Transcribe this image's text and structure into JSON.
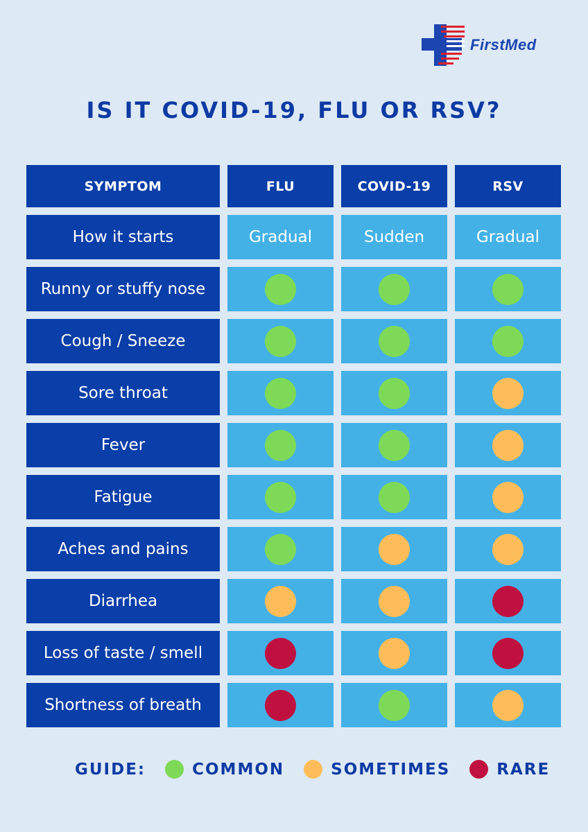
{
  "brand": {
    "name": "FirstMed",
    "logo_icon": "cross-logo-icon"
  },
  "title": "IS IT COVID-19, FLU OR RSV?",
  "colors": {
    "common": "#7ed957",
    "sometimes": "#ffbd59",
    "rare": "#c0103f",
    "header_bg": "#0a3ea8",
    "cell_bg": "#44b1e6",
    "page_bg": "#dde9f5"
  },
  "table": {
    "headers": [
      "SYMPTOM",
      "FLU",
      "COVID-19",
      "RSV"
    ],
    "rows": [
      {
        "symptom": "How it starts",
        "flu": "Gradual",
        "covid": "Sudden",
        "rsv": "Gradual"
      },
      {
        "symptom": "Runny or stuffy nose",
        "flu": "common",
        "covid": "common",
        "rsv": "common"
      },
      {
        "symptom": "Cough / Sneeze",
        "flu": "common",
        "covid": "common",
        "rsv": "common"
      },
      {
        "symptom": "Sore throat",
        "flu": "common",
        "covid": "common",
        "rsv": "sometimes"
      },
      {
        "symptom": "Fever",
        "flu": "common",
        "covid": "common",
        "rsv": "sometimes"
      },
      {
        "symptom": "Fatigue",
        "flu": "common",
        "covid": "common",
        "rsv": "sometimes"
      },
      {
        "symptom": "Aches and pains",
        "flu": "common",
        "covid": "sometimes",
        "rsv": "sometimes"
      },
      {
        "symptom": "Diarrhea",
        "flu": "sometimes",
        "covid": "sometimes",
        "rsv": "rare"
      },
      {
        "symptom": "Loss of taste / smell",
        "flu": "rare",
        "covid": "sometimes",
        "rsv": "rare"
      },
      {
        "symptom": "Shortness of breath",
        "flu": "rare",
        "covid": "common",
        "rsv": "sometimes"
      }
    ]
  },
  "guide": {
    "label": "GUIDE:",
    "items": [
      {
        "key": "common",
        "label": "COMMON"
      },
      {
        "key": "sometimes",
        "label": "SOMETIMES"
      },
      {
        "key": "rare",
        "label": "RARE"
      }
    ]
  }
}
